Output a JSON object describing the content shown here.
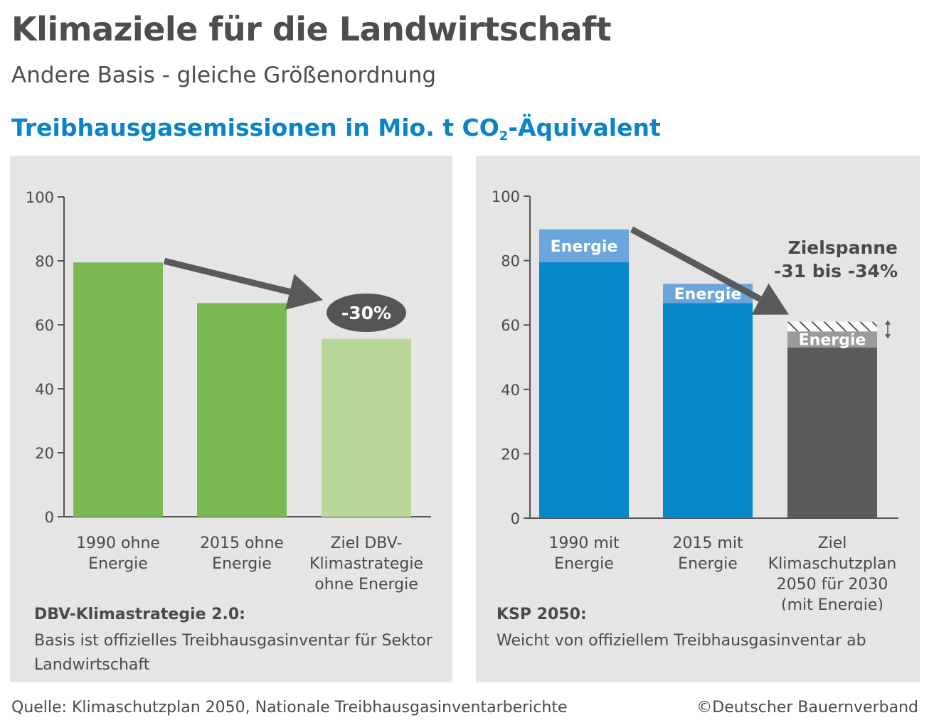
{
  "header": {
    "title": "Klimaziele für die Landwirtschaft",
    "subtitle": "Andere Basis - gleiche Größenordnung",
    "chart_heading_main": "Treibhausgasemissionen in Mio. t CO",
    "chart_heading_sub": "2",
    "chart_heading_tail": "-Äquivalent"
  },
  "chart_data": [
    {
      "type": "bar",
      "ylim": [
        0,
        100
      ],
      "yticks": [
        "0",
        "20",
        "40",
        "60",
        "80",
        "100"
      ],
      "categories": [
        [
          "1990 ohne",
          "Energie"
        ],
        [
          "2015 ohne",
          "Energie"
        ],
        [
          "Ziel DBV-",
          "Klimastrategie",
          "ohne Energie"
        ]
      ],
      "values": [
        79.5,
        66.8,
        55.6
      ],
      "colors": [
        "#7ab852",
        "#7ab852",
        "#b9d69b"
      ],
      "annotation": "-30%",
      "note_title": "DBV-Klimastrategie 2.0:",
      "note_text": "Basis ist offizielles Treibhausgasinventar für Sektor Landwirtschaft"
    },
    {
      "type": "bar",
      "stacked": true,
      "ylim": [
        0,
        100
      ],
      "yticks": [
        "0",
        "20",
        "40",
        "60",
        "80",
        "100"
      ],
      "categories": [
        [
          "1990 mit",
          "Energie"
        ],
        [
          "2015 mit",
          "Energie"
        ],
        [
          "Ziel",
          "Klimaschutzplan",
          "2050 für 2030",
          "(mit Energie)"
        ]
      ],
      "series": [
        {
          "values": [
            79.5,
            66.8,
            53.0
          ],
          "colors": [
            "#0587c9",
            "#0587c9",
            "#5a5a5a"
          ]
        },
        {
          "name": "Energie",
          "values": [
            10.2,
            6.0,
            5.0
          ],
          "colors": [
            "#6aa6dc",
            "#6aa6dc",
            "#9a9a9a"
          ]
        }
      ],
      "target_range": [
        58.0,
        61.0
      ],
      "annotation_lines": [
        "Zielspanne",
        "-31 bis -34%"
      ],
      "note_title": "KSP 2050:",
      "note_text": "Weicht von offiziellem Treibhausgasinventar ab"
    }
  ],
  "footer": {
    "source": "Quelle: Klimaschutzplan 2050, Nationale Treibhausgasinventarberichte",
    "copyright": "©Deutscher Bauernverband"
  },
  "colors": {
    "accent_blue": "#0a84c8",
    "arrow_gray": "#5a5a5a",
    "panel_bg": "#e5e5e5"
  }
}
